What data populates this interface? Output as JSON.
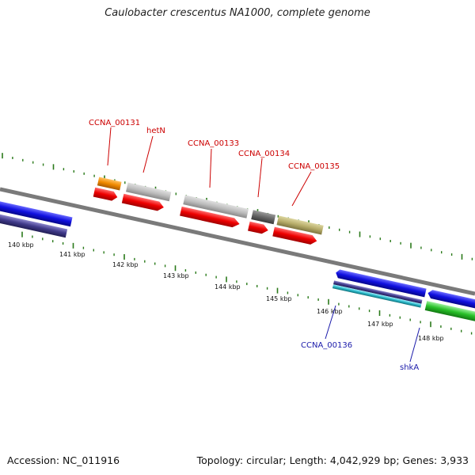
{
  "title": "Caulobacter crescentus NA1000, complete genome",
  "footer": {
    "accession": "Accession: NC_011916",
    "topology": "Topology: circular; Length: 4,042,929 bp; Genes: 3,933"
  },
  "scale_labels": [
    "140 kbp",
    "141 kbp",
    "142 kbp",
    "143 kbp",
    "144 kbp",
    "145 kbp",
    "146 kbp",
    "147 kbp",
    "148 kbp"
  ],
  "gene_labels": {
    "CCNA_00131": "CCNA_00131",
    "hetN": "hetN",
    "CCNA_00133": "CCNA_00133",
    "CCNA_00134": "CCNA_00134",
    "CCNA_00135": "CCNA_00135",
    "CCNA_00136": "CCNA_00136",
    "shkA": "shkA"
  },
  "colors": {
    "backbone": "#7a7a7a",
    "tick": "#2a7a1a",
    "label_top": "#cc0000",
    "label_bottom": "#1a1aaa",
    "cds_forward_red": "#e00000",
    "cds_reverse_blue": "#1010d8",
    "grey_feature": "#b8b8b8",
    "dark_grey_feature": "#666666",
    "orange_feature": "#f08a00",
    "khaki_feature": "#b7ad6a",
    "navy_feature": "#403a8a",
    "cyan_feature": "#2ab8c8",
    "green_feature": "#28c028"
  }
}
